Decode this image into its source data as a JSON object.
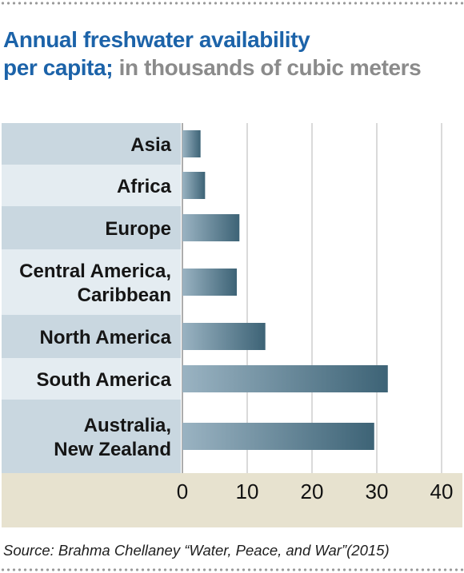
{
  "title": {
    "main_line1": "Annual freshwater availability",
    "main_line2": "per capita;",
    "unit": " in thousands of cubic meters"
  },
  "source": "Source: Brahma Chellaney “Water, Peace, and War”(2015)",
  "colors": {
    "title": "#1c63a9",
    "subtitle": "#8b8b8b",
    "label_band_dark": "#c9d7e0",
    "label_band_light": "#e4ecf1",
    "axis_band": "#e7e2cf",
    "bar_start": "#9ab3c2",
    "bar_end": "#3d6376",
    "grid": "#b5b5b5"
  },
  "chart_data": {
    "type": "bar",
    "orientation": "horizontal",
    "categories": [
      [
        "Asia"
      ],
      [
        "Africa"
      ],
      [
        "Europe"
      ],
      [
        "Central America,",
        "Caribbean"
      ],
      [
        "North America"
      ],
      [
        "South America"
      ],
      [
        "Australia,",
        "New Zealand"
      ]
    ],
    "values": [
      2.8,
      3.5,
      8.8,
      8.4,
      12.8,
      31.7,
      29.6
    ],
    "xlim": [
      0,
      40
    ],
    "xticks": [
      0,
      10,
      20,
      30,
      40
    ],
    "grid": true
  }
}
